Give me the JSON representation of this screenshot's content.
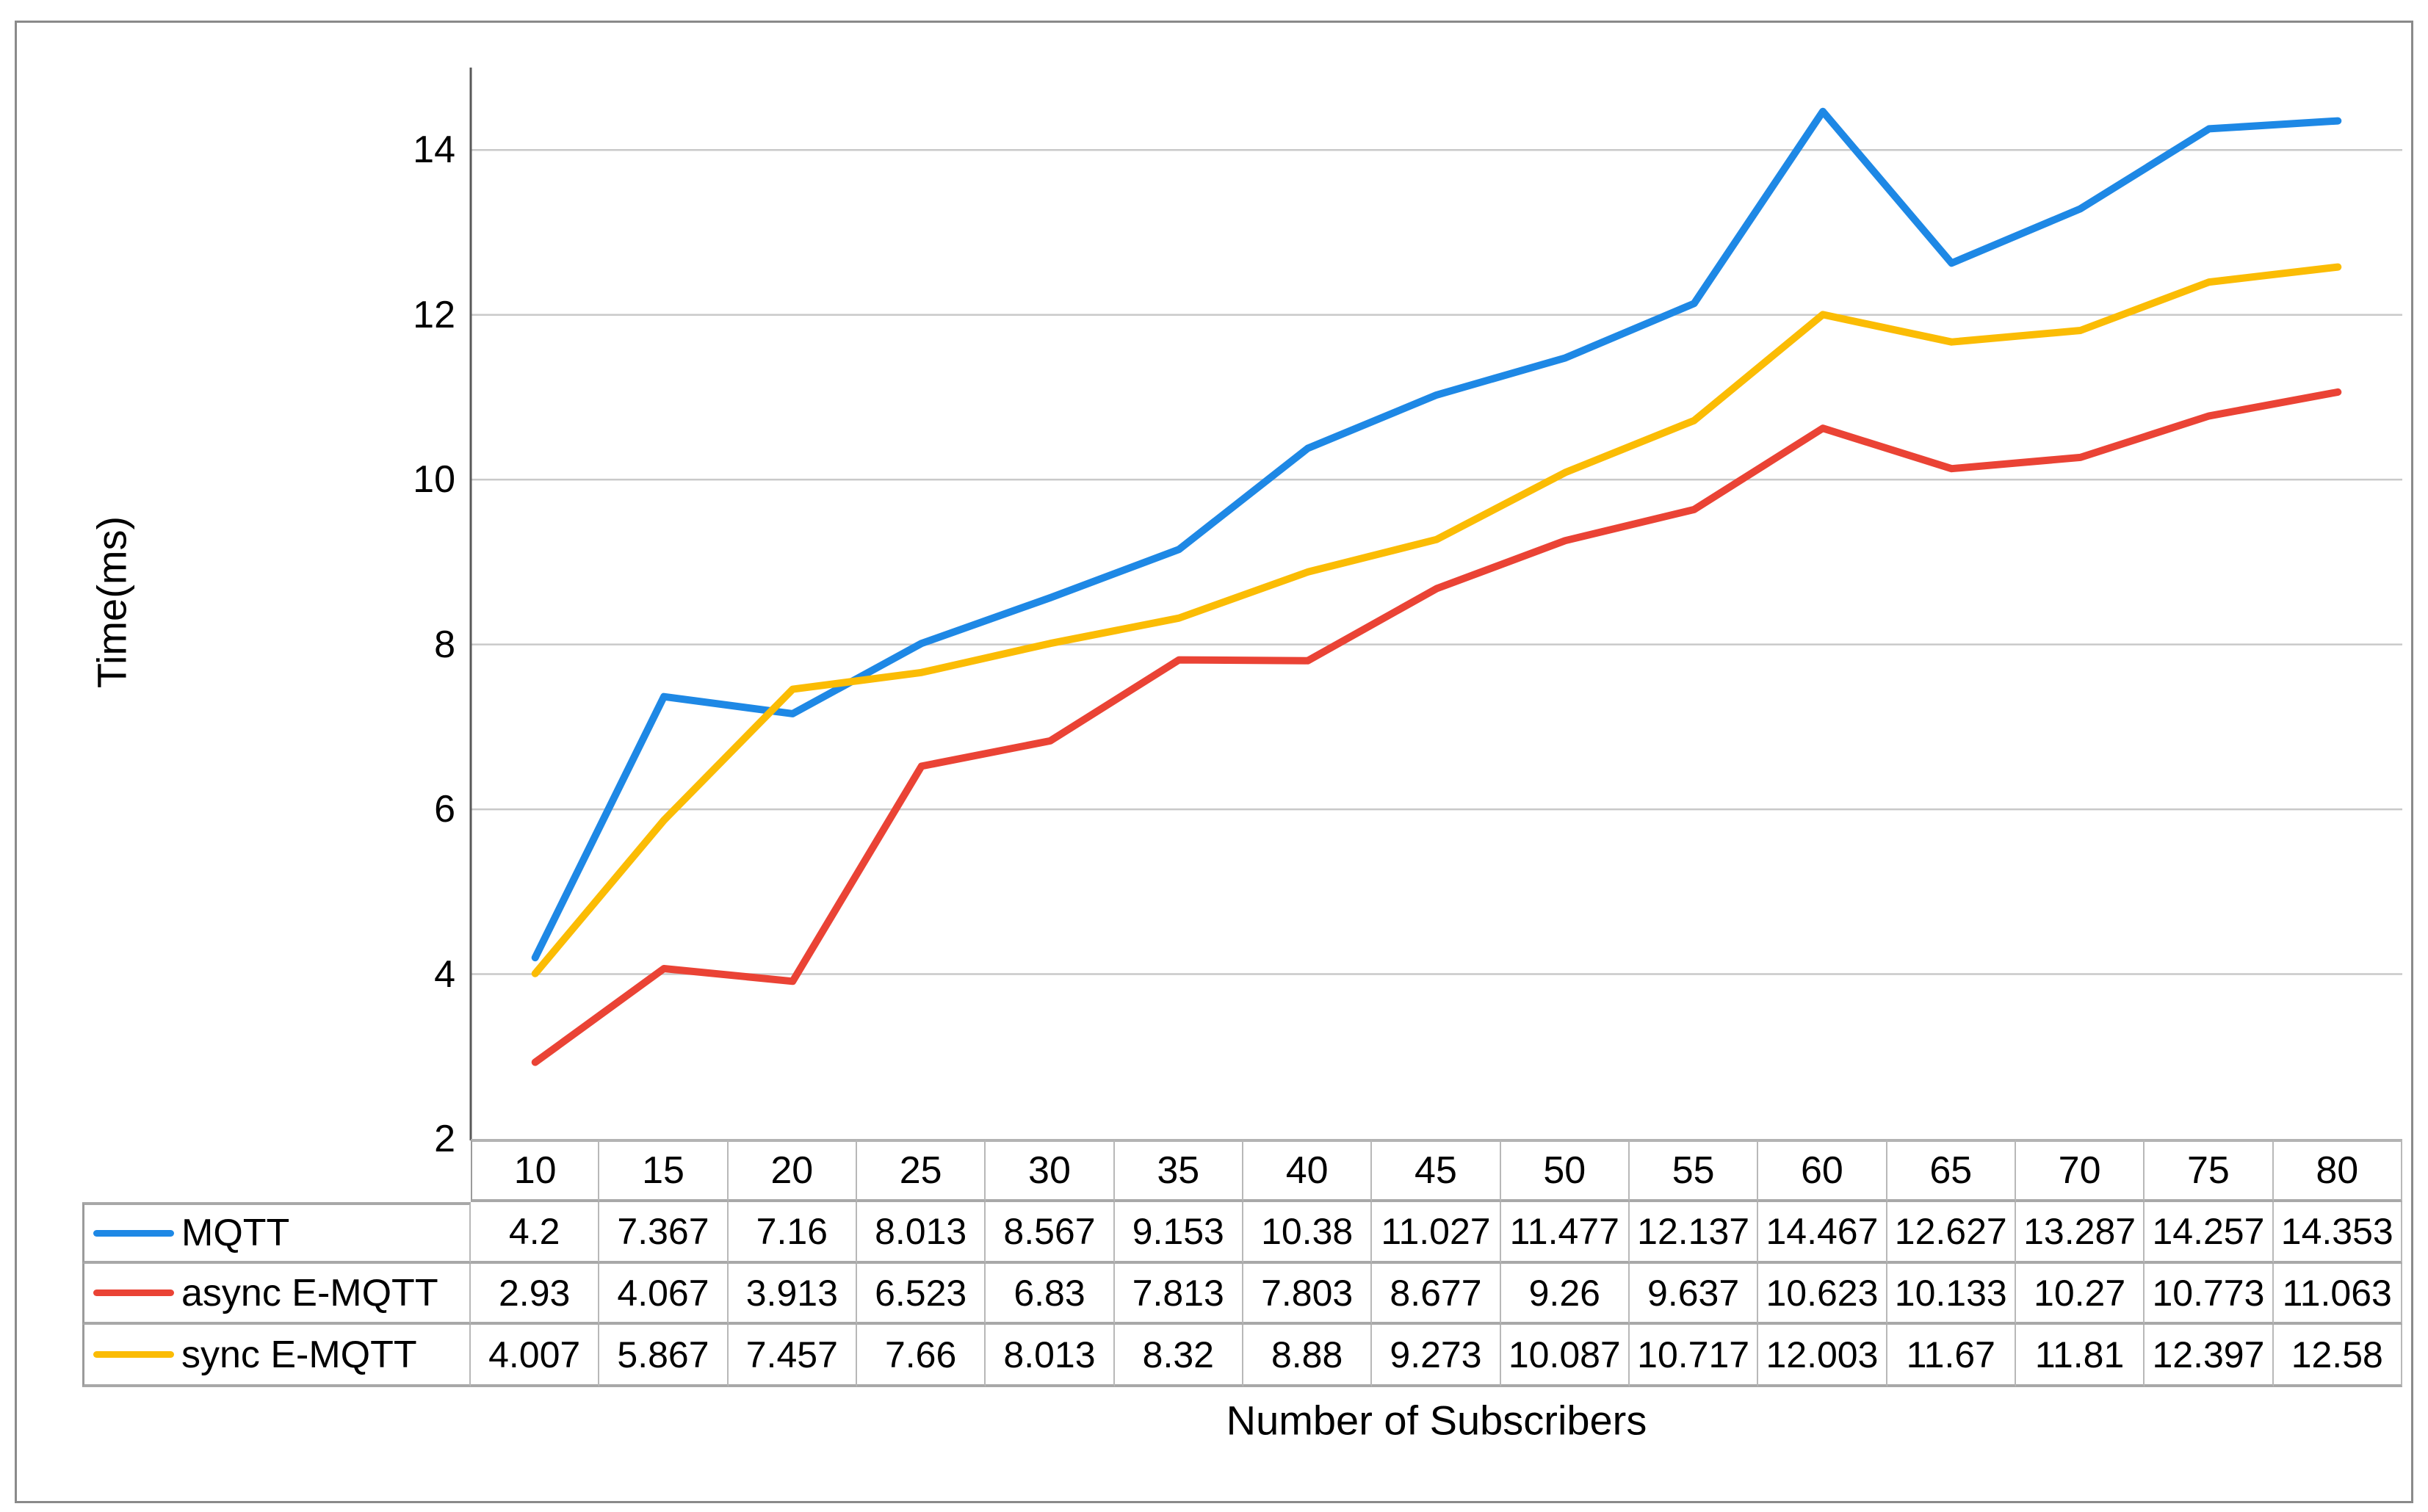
{
  "figure": {
    "y_axis_title": "Time(ms)",
    "x_axis_title": "Number of Subscribers",
    "colors": {
      "background": "#ffffff",
      "outer_border": "#8a8a8a",
      "gridline": "#c9c9c9",
      "axis_spine": "#595959",
      "table_border": "#a8a8a8",
      "text": "#000000"
    }
  },
  "chart_data": {
    "type": "line",
    "title": "",
    "xlabel": "Number of Subscribers",
    "ylabel": "Time(ms)",
    "categories": [
      "10",
      "15",
      "20",
      "25",
      "30",
      "35",
      "40",
      "45",
      "50",
      "55",
      "60",
      "65",
      "70",
      "75",
      "80"
    ],
    "ylim": [
      2,
      15
    ],
    "yticks": [
      2,
      4,
      6,
      8,
      10,
      12,
      14
    ],
    "grid": true,
    "legend_position": "data-table-left",
    "series": [
      {
        "name": "MQTT",
        "color": "#1E88E5",
        "values": [
          4.2,
          7.367,
          7.16,
          8.013,
          8.567,
          9.153,
          10.38,
          11.027,
          11.477,
          12.137,
          14.467,
          12.627,
          13.287,
          14.257,
          14.353
        ]
      },
      {
        "name": "async E-MQTT",
        "color": "#EA4335",
        "values": [
          2.93,
          4.067,
          3.913,
          6.523,
          6.83,
          7.813,
          7.803,
          8.677,
          9.26,
          9.637,
          10.623,
          10.133,
          10.27,
          10.773,
          11.063
        ]
      },
      {
        "name": "sync E-MQTT",
        "color": "#FBBC04",
        "values": [
          4.007,
          5.867,
          7.457,
          7.66,
          8.013,
          8.32,
          8.88,
          9.273,
          10.087,
          10.717,
          12.003,
          11.67,
          11.81,
          12.397,
          12.58
        ]
      }
    ]
  }
}
